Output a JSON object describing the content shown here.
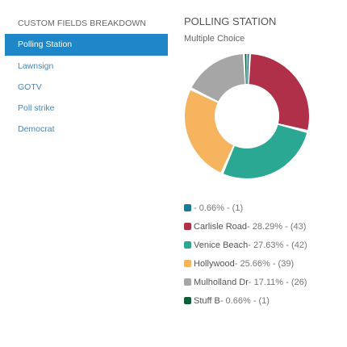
{
  "sidebar": {
    "title": "CUSTOM FIELDS BREAKDOWN",
    "items": [
      {
        "label": "Polling Station",
        "active": true
      },
      {
        "label": "Lawnsign",
        "active": false
      },
      {
        "label": "GOTV",
        "active": false
      },
      {
        "label": "Poll strike",
        "active": false
      },
      {
        "label": "Democrat",
        "active": false
      }
    ]
  },
  "main": {
    "title": "POLLING STATION",
    "subtitle": "Multiple Choice"
  },
  "chart_data": {
    "type": "pie",
    "donut": true,
    "series": [
      {
        "name": "",
        "percent": 0.66,
        "count": 1,
        "color": "#1a7a9a",
        "text": "- 0.66% - (1)"
      },
      {
        "name": "Carlisle Road",
        "percent": 28.29,
        "count": 43,
        "color": "#b0304a",
        "text": " - 28.29% - (43)"
      },
      {
        "name": "Venice Beach",
        "percent": 27.63,
        "count": 42,
        "color": "#2aa893",
        "text": " - 27.63% - (42)"
      },
      {
        "name": "Hollywood",
        "percent": 25.66,
        "count": 39,
        "color": "#f6b45e",
        "text": " - 25.66% - (39)"
      },
      {
        "name": "Mulholland Dr",
        "percent": 17.11,
        "count": 26,
        "color": "#a6a6a6",
        "text": " - 17.11% - (26)"
      },
      {
        "name": "Stuff B",
        "percent": 0.66,
        "count": 1,
        "color": "#0f5e3a",
        "text": " - 0.66% - (1)"
      }
    ]
  }
}
